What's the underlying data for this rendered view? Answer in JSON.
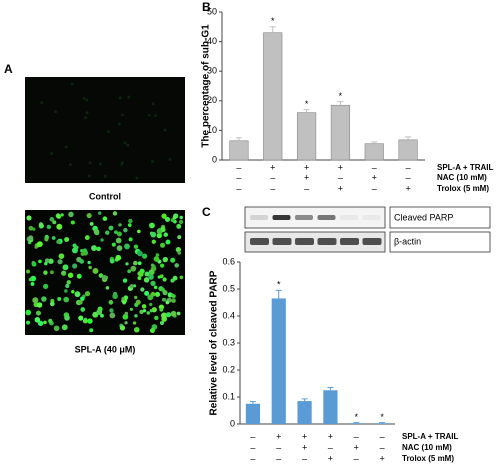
{
  "figure": {
    "panel_labels": [
      "A",
      "B",
      "C"
    ],
    "image_captions": [
      "Control",
      "SPL-A (40 μM)"
    ],
    "blot_labels": [
      "Cleaved PARP",
      "β-actin"
    ]
  },
  "chart_data": [
    {
      "type": "bar",
      "y_label": "The percentage of sub-G1",
      "color": "#c0c0c0",
      "values": [
        6.5,
        43,
        16,
        18.5,
        5.5,
        6.8
      ],
      "errors": [
        1,
        2,
        1,
        1.2,
        0.6,
        1
      ],
      "significance": [
        {
          "index": 1,
          "text": "*"
        },
        {
          "index": 2,
          "text": "*"
        },
        {
          "index": 3,
          "text": "*"
        }
      ],
      "ylim": [
        0,
        50
      ],
      "yticks": [
        0,
        10,
        20,
        30,
        40,
        50
      ],
      "treatments": [
        {
          "name": "SPL-A + TRAIL",
          "signs": [
            "–",
            "+",
            "+",
            "+",
            "–",
            "–"
          ]
        },
        {
          "name": "NAC (10 mM)",
          "signs": [
            "–",
            "–",
            "+",
            "–",
            "+",
            "–"
          ]
        },
        {
          "name": "Trolox (5 mM)",
          "signs": [
            "–",
            "–",
            "–",
            "+",
            "–",
            "+"
          ]
        }
      ]
    },
    {
      "type": "bar",
      "y_label": "Relative level of cleaved PARP",
      "color": "#5b9bd5",
      "values": [
        0.075,
        0.465,
        0.085,
        0.125,
        0.003,
        0.003
      ],
      "errors": [
        0.008,
        0.03,
        0.008,
        0.01,
        0.002,
        0.002
      ],
      "significance": [
        {
          "index": 1,
          "text": "*"
        },
        {
          "index": 4,
          "text": "*"
        },
        {
          "index": 5,
          "text": "*"
        }
      ],
      "ylim": [
        0,
        0.6
      ],
      "yticks": [
        0,
        0.1,
        0.2,
        0.3,
        0.4,
        0.5,
        0.6
      ],
      "treatments": [
        {
          "name": "SPL-A + TRAIL",
          "signs": [
            "–",
            "+",
            "+",
            "+",
            "–",
            "–"
          ]
        },
        {
          "name": "NAC (10 mM)",
          "signs": [
            "–",
            "–",
            "+",
            "–",
            "+",
            "–"
          ]
        },
        {
          "name": "Trolox (5 mM)",
          "signs": [
            "–",
            "–",
            "–",
            "+",
            "–",
            "+"
          ]
        }
      ]
    }
  ]
}
